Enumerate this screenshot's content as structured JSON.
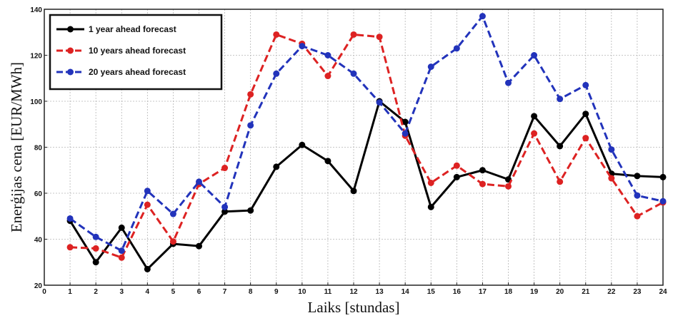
{
  "chart_data": {
    "type": "line",
    "title": "",
    "xlabel": "Laiks [stundas]",
    "ylabel": "Enerģijas cena [EUR/MWh]",
    "xlim": [
      0,
      24
    ],
    "ylim": [
      20,
      140
    ],
    "x_ticks": [
      0,
      1,
      2,
      3,
      4,
      5,
      6,
      7,
      8,
      9,
      10,
      11,
      12,
      13,
      14,
      15,
      16,
      17,
      18,
      19,
      20,
      21,
      22,
      23,
      24
    ],
    "y_ticks": [
      20,
      40,
      60,
      80,
      100,
      120,
      140
    ],
    "grid": true,
    "legend_position": "top-left",
    "x": [
      1,
      2,
      3,
      4,
      5,
      6,
      7,
      8,
      9,
      10,
      11,
      12,
      13,
      14,
      15,
      16,
      17,
      18,
      19,
      20,
      21,
      22,
      23,
      24
    ],
    "series": [
      {
        "name": "1 year ahead forecast",
        "color": "#000000",
        "dashed": false,
        "values": [
          48,
          30,
          45,
          27,
          38,
          37,
          52,
          52.5,
          71.5,
          81,
          74,
          61,
          100,
          91,
          54,
          67,
          70,
          66,
          93.5,
          80.5,
          94.5,
          68.5,
          67.5,
          67
        ]
      },
      {
        "name": "10 years ahead forecast",
        "color": "#dd2222",
        "dashed": true,
        "values": [
          36.5,
          36,
          32,
          55,
          39,
          64,
          71,
          103,
          129,
          125,
          111,
          129,
          128,
          85,
          64.5,
          72,
          64,
          63,
          86,
          65,
          84,
          66.5,
          50,
          56
        ]
      },
      {
        "name": "20 years ahead forecast",
        "color": "#2233bb",
        "dashed": true,
        "values": [
          49,
          41,
          35,
          61,
          51,
          65,
          54,
          89.5,
          112,
          124,
          120,
          112,
          99.5,
          86,
          115,
          123,
          137,
          108,
          120,
          101,
          107,
          79,
          59,
          56.5
        ]
      }
    ]
  }
}
